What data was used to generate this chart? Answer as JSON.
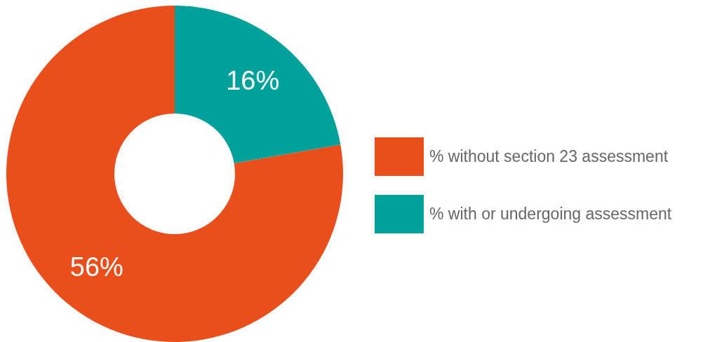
{
  "chart_data": {
    "type": "donut",
    "categories": [
      "% without section 23 assessment",
      "% with or undergoing assessment"
    ],
    "values": [
      56,
      16
    ],
    "colors": [
      "#e94e1b",
      "#00a19a"
    ],
    "value_labels": [
      "56%",
      "16%"
    ],
    "legend": "right"
  }
}
